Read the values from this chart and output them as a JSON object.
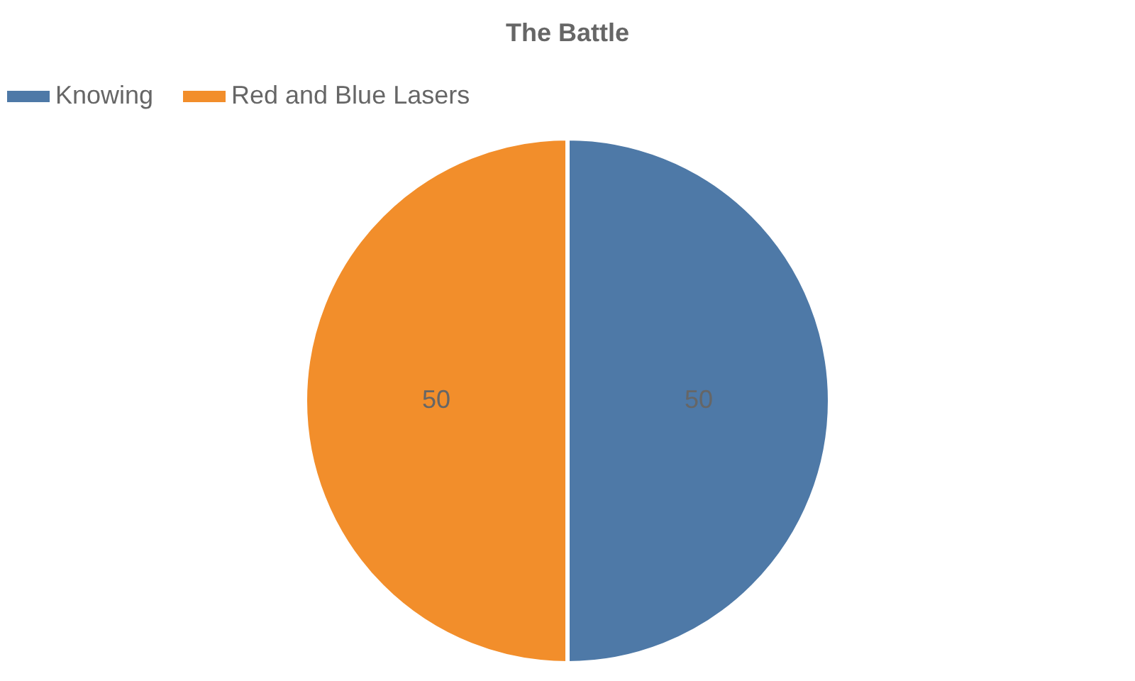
{
  "chart_data": {
    "type": "pie",
    "title": "The Battle",
    "categories": [
      "Knowing",
      "Red and Blue Lasers"
    ],
    "values": [
      50,
      50
    ],
    "colors": [
      "#4e79a7",
      "#f28e2b"
    ],
    "data_labels": true,
    "legend": "top"
  }
}
